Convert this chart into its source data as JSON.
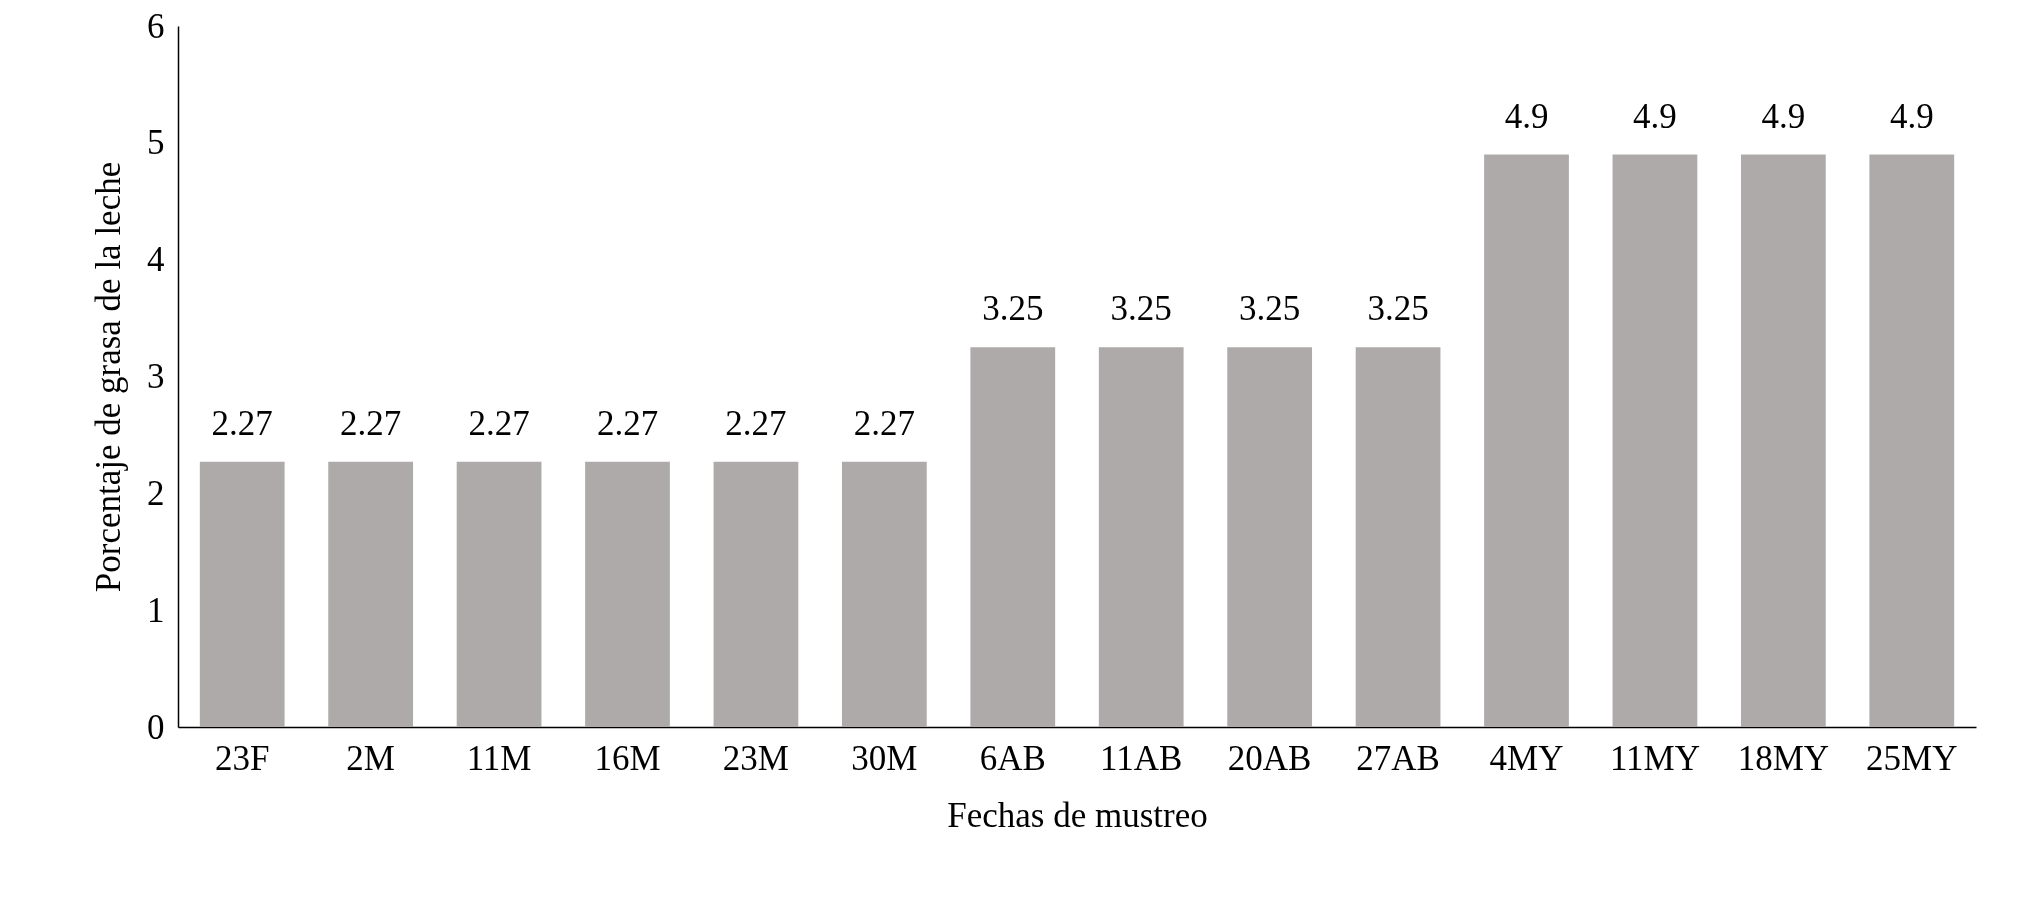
{
  "chart_data": {
    "type": "bar",
    "xlabel": "Fechas de mustreo",
    "ylabel": "Porcentaje de grasa de la leche",
    "categories": [
      "23F",
      "2M",
      "11M",
      "16M",
      "23M",
      "30M",
      "6AB",
      "11AB",
      "20AB",
      "27AB",
      "4MY",
      "11MY",
      "18MY",
      "25MY"
    ],
    "values": [
      2.27,
      2.27,
      2.27,
      2.27,
      2.27,
      2.27,
      3.25,
      3.25,
      3.25,
      3.25,
      4.9,
      4.9,
      4.9,
      4.9
    ],
    "color": "#aeaaaa",
    "ylim": [
      0,
      6
    ],
    "yticks": [
      0,
      1,
      2,
      3,
      4,
      5,
      6
    ],
    "grid": false,
    "data_labels": true
  }
}
